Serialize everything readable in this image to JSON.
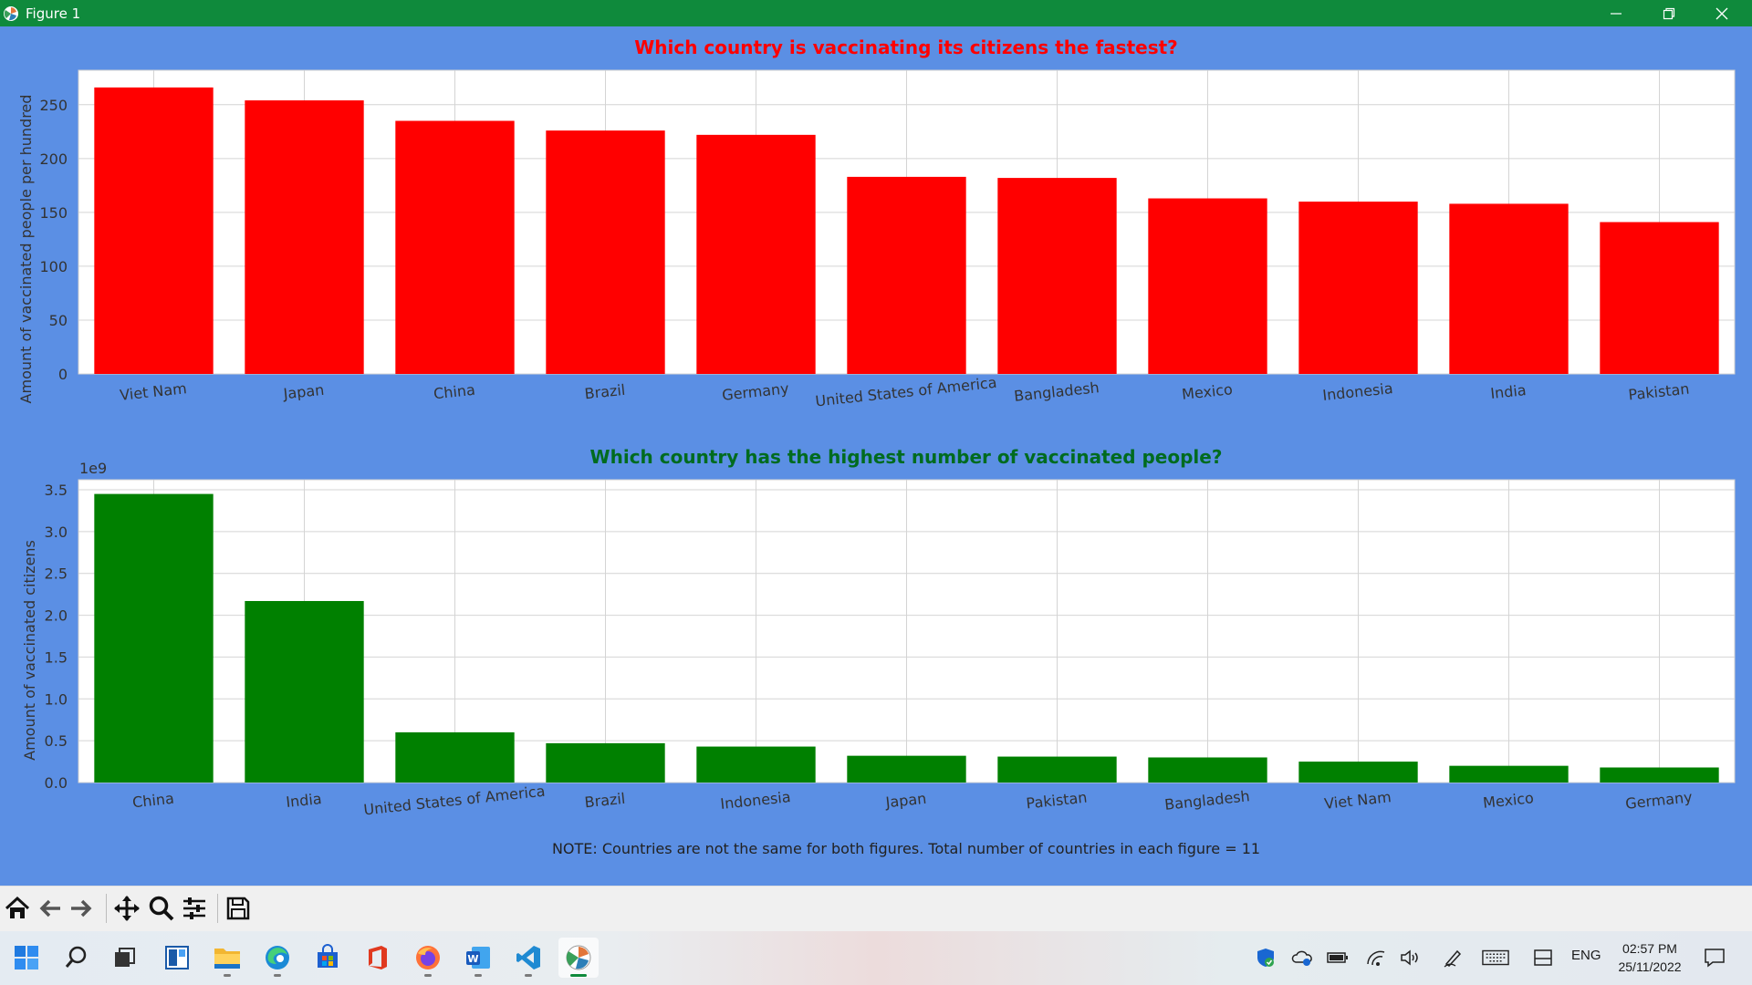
{
  "window": {
    "title": "Figure 1",
    "controls": [
      "minimize",
      "restore",
      "close"
    ],
    "title_bar_color": "#0f8a3c",
    "figure_background": "#5b8fe4"
  },
  "chart_data": [
    {
      "type": "bar",
      "title": "Which country is vaccinating its citizens the fastest?",
      "title_color": "#ff0000",
      "bar_color": "#ff0000",
      "xlabel": "",
      "ylabel": "Amount of vaccinated people per hundred",
      "ylim": [
        0,
        282
      ],
      "yticks": [
        0,
        50,
        100,
        150,
        200,
        250
      ],
      "ytick_labels": [
        "0",
        "50",
        "100",
        "150",
        "200",
        "250"
      ],
      "grid": true,
      "categories": [
        "Viet Nam",
        "Japan",
        "China",
        "Brazil",
        "Germany",
        "United States of America",
        "Bangladesh",
        "Mexico",
        "Indonesia",
        "India",
        "Pakistan"
      ],
      "values": [
        266,
        254,
        235,
        226,
        222,
        183,
        182,
        163,
        160,
        158,
        141
      ]
    },
    {
      "type": "bar",
      "title": "Which country has the highest number of vaccinated people?",
      "title_color": "#006b1f",
      "bar_color": "#008000",
      "xlabel": "",
      "ylabel": "Amount of vaccinated citizens",
      "offset_label": "1e9",
      "ylim": [
        0,
        3.62
      ],
      "yticks": [
        0,
        0.5,
        1.0,
        1.5,
        2.0,
        2.5,
        3.0,
        3.5
      ],
      "ytick_labels": [
        "0.0",
        "0.5",
        "1.0",
        "1.5",
        "2.0",
        "2.5",
        "3.0",
        "3.5"
      ],
      "grid": true,
      "categories": [
        "China",
        "India",
        "United States of America",
        "Brazil",
        "Indonesia",
        "Japan",
        "Pakistan",
        "Bangladesh",
        "Viet Nam",
        "Mexico",
        "Germany"
      ],
      "values": [
        3.45,
        2.17,
        0.6,
        0.47,
        0.43,
        0.32,
        0.31,
        0.3,
        0.25,
        0.2,
        0.18
      ]
    }
  ],
  "note": "NOTE: Countries are not the same for both figures. Total number of countries in each figure = 11",
  "toolbar": {
    "buttons": [
      "home-icon",
      "back-arrow-icon",
      "forward-arrow-icon",
      "pan-icon",
      "zoom-icon",
      "configure-subplots-icon",
      "save-icon"
    ]
  },
  "taskbar": {
    "apps": [
      "start-icon",
      "search-icon",
      "task-view-icon",
      "widgets-icon",
      "file-explorer-icon",
      "edge-icon",
      "store-icon",
      "office-icon",
      "firefox-icon",
      "word-icon",
      "vscode-icon",
      "matplotlib-figure-icon"
    ],
    "tray": [
      "security-shield-icon",
      "onedrive-icon",
      "battery-icon",
      "wifi-icon",
      "volume-icon",
      "pen-icon",
      "keyboard-icon",
      "tablet-mode-icon"
    ],
    "language": "ENG",
    "time": "02:57 PM",
    "date": "25/11/2022"
  }
}
